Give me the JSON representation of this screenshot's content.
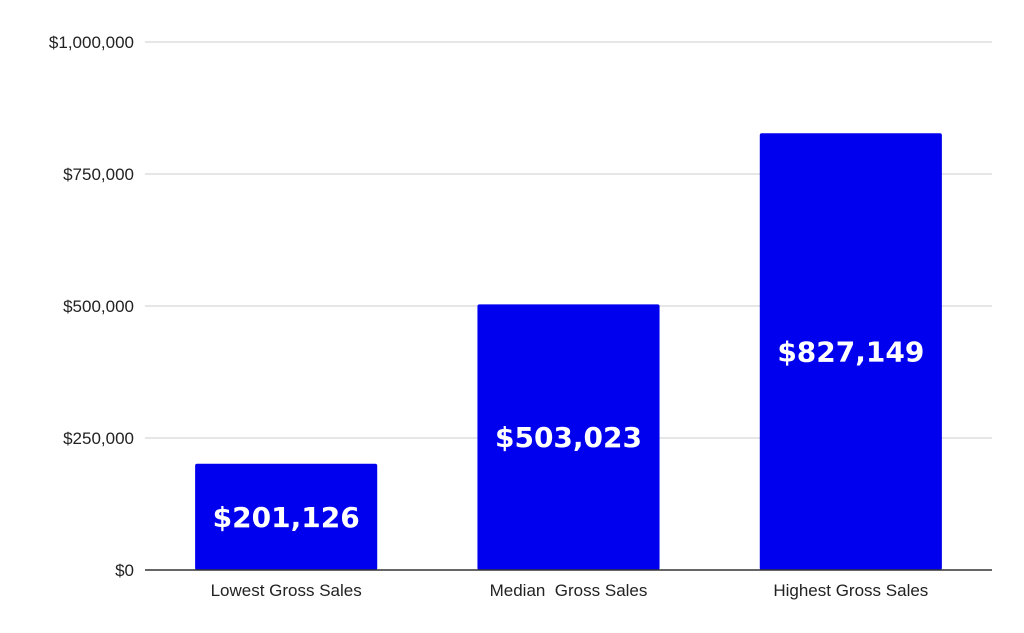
{
  "chart_data": {
    "type": "bar",
    "categories": [
      "Lowest Gross Sales",
      "Median  Gross Sales",
      "Highest Gross Sales"
    ],
    "values": [
      201126,
      503023,
      827149
    ],
    "data_labels": [
      "$201,126",
      "$503,023",
      "$827,149"
    ],
    "title": "",
    "xlabel": "",
    "ylabel": "",
    "ylim": [
      0,
      1000000
    ],
    "yticks": [
      0,
      250000,
      500000,
      750000,
      1000000
    ],
    "ytick_labels": [
      "$0",
      "$250,000",
      "$500,000",
      "$750,000",
      "$1,000,000"
    ],
    "grid": true,
    "legend": "none",
    "bar_color": "#0000ee",
    "data_label_color": "#ffffff"
  }
}
